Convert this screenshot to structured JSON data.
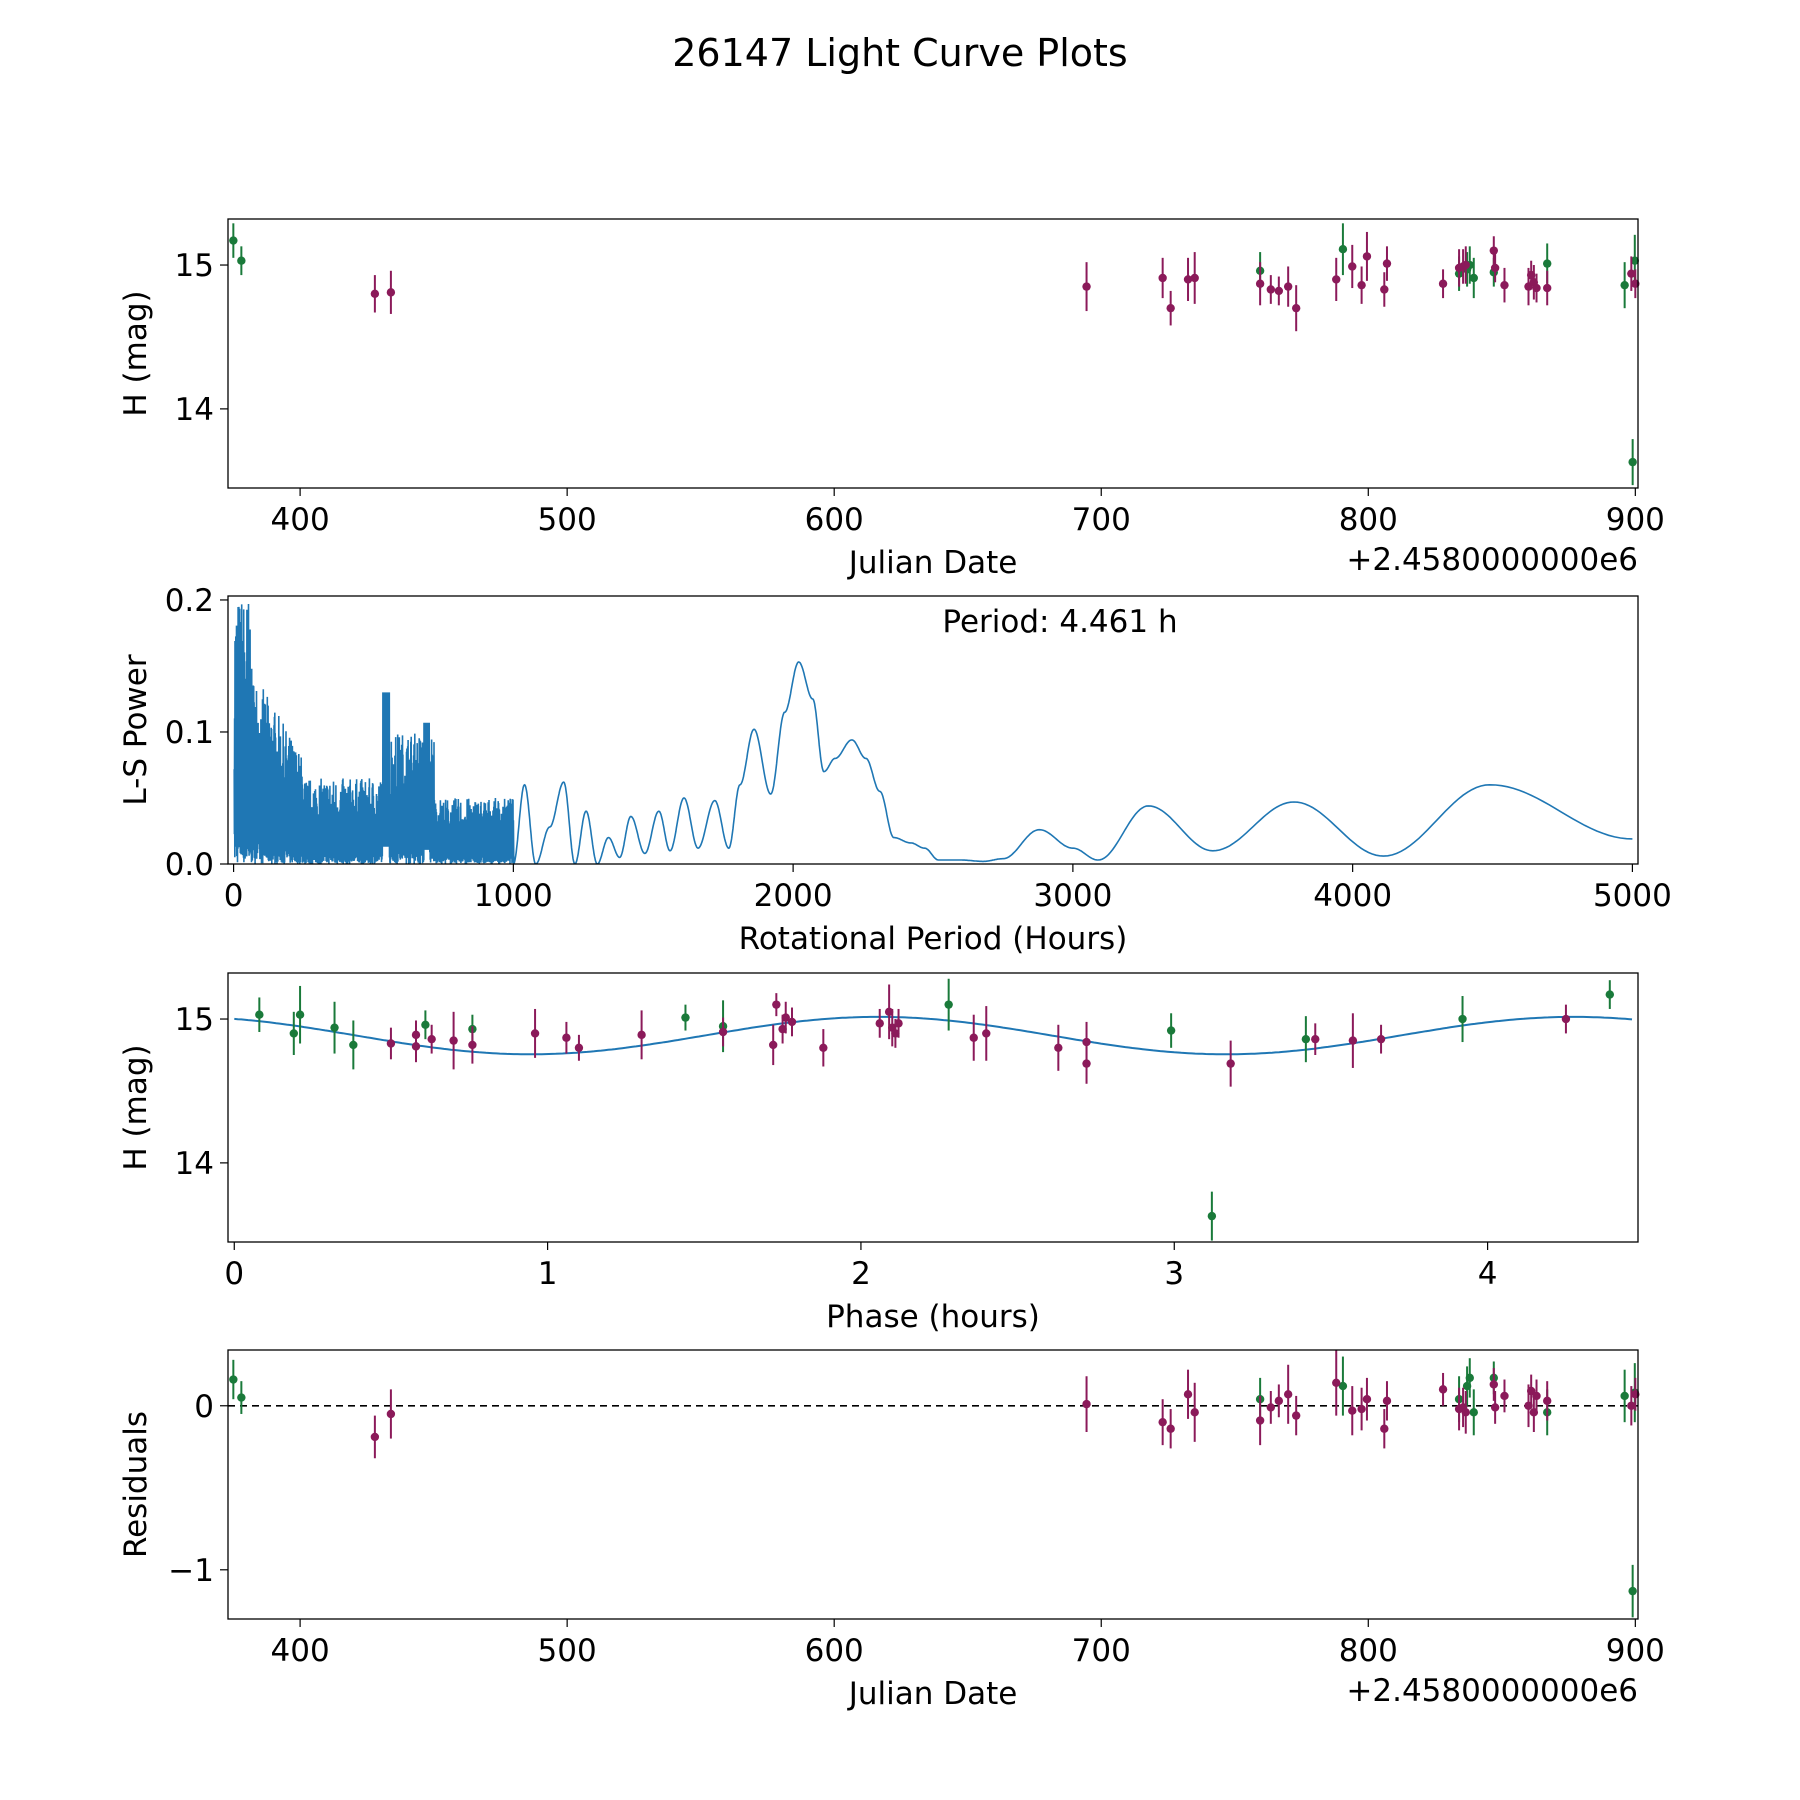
{
  "title": "26147 Light Curve Plots",
  "colors": {
    "green": "#1a7a3a",
    "purple": "#8b1a5a",
    "line": "#1f77b4",
    "axis": "#000000"
  },
  "chart_data": [
    {
      "id": "lightcurve",
      "type": "scatter",
      "xlabel": "Julian Date",
      "ylabel": "H (mag)",
      "offset_label": "+2.4580000000e6",
      "xlim": [
        373,
        901
      ],
      "ylim": [
        13.45,
        15.32
      ],
      "xticks": [
        400,
        500,
        600,
        700,
        800,
        900
      ],
      "yticks": [
        14,
        15
      ],
      "series": [
        {
          "name": "green",
          "color": "green",
          "points": [
            [
              375,
              15.17,
              0.12
            ],
            [
              378,
              15.03,
              0.1
            ],
            [
              759.5,
              14.96,
              0.13
            ],
            [
              790.5,
              15.11,
              0.18
            ],
            [
              834,
              14.94,
              0.12
            ],
            [
              837,
              14.97,
              0.12
            ],
            [
              838,
              15.0,
              0.13
            ],
            [
              839.5,
              14.91,
              0.14
            ],
            [
              847,
              14.95,
              0.1
            ],
            [
              867,
              15.01,
              0.14
            ],
            [
              896,
              14.86,
              0.16
            ],
            [
              899,
              13.63,
              0.16
            ],
            [
              899.8,
              15.03,
              0.18
            ]
          ]
        },
        {
          "name": "purple",
          "color": "purple",
          "points": [
            [
              428,
              14.8,
              0.13
            ],
            [
              434,
              14.81,
              0.15
            ],
            [
              694.5,
              14.85,
              0.17
            ],
            [
              723,
              14.91,
              0.14
            ],
            [
              726,
              14.7,
              0.12
            ],
            [
              732.5,
              14.9,
              0.15
            ],
            [
              735,
              14.91,
              0.18
            ],
            [
              759.5,
              14.87,
              0.15
            ],
            [
              763.5,
              14.83,
              0.1
            ],
            [
              766.5,
              14.82,
              0.1
            ],
            [
              770,
              14.85,
              0.14
            ],
            [
              773,
              14.7,
              0.16
            ],
            [
              788,
              14.9,
              0.15
            ],
            [
              794,
              14.99,
              0.15
            ],
            [
              797.5,
              14.86,
              0.13
            ],
            [
              799.5,
              15.06,
              0.17
            ],
            [
              806,
              14.83,
              0.12
            ],
            [
              807,
              15.01,
              0.12
            ],
            [
              828,
              14.87,
              0.1
            ],
            [
              834,
              14.98,
              0.13
            ],
            [
              835.5,
              14.99,
              0.12
            ],
            [
              836.5,
              15.0,
              0.13
            ],
            [
              847,
              15.1,
              0.1
            ],
            [
              847.5,
              14.98,
              0.1
            ],
            [
              851,
              14.86,
              0.12
            ],
            [
              860,
              14.85,
              0.13
            ],
            [
              861,
              14.93,
              0.1
            ],
            [
              862,
              14.88,
              0.12
            ],
            [
              863,
              14.84,
              0.1
            ],
            [
              867,
              14.84,
              0.12
            ],
            [
              898.5,
              14.94,
              0.12
            ],
            [
              900,
              14.87,
              0.1
            ]
          ]
        }
      ]
    },
    {
      "id": "periodogram",
      "type": "line",
      "xlabel": "Rotational Period (Hours)",
      "ylabel": "L-S Power",
      "annotation": "Period: 4.461 h",
      "xlim": [
        -20,
        5020
      ],
      "ylim": [
        0,
        0.203
      ],
      "xticks": [
        0,
        1000,
        2000,
        3000,
        4000,
        5000
      ],
      "yticks": [
        0.0,
        0.1,
        0.2
      ],
      "ytick_labels": [
        "0.0",
        "0.1",
        "0.2"
      ],
      "peaks": [
        [
          1000,
          0.0
        ],
        [
          1040,
          0.06
        ],
        [
          1080,
          0.0
        ],
        [
          1130,
          0.028
        ],
        [
          1180,
          0.062
        ],
        [
          1220,
          0.0
        ],
        [
          1260,
          0.04
        ],
        [
          1300,
          0.0
        ],
        [
          1340,
          0.02
        ],
        [
          1380,
          0.005
        ],
        [
          1420,
          0.036
        ],
        [
          1470,
          0.008
        ],
        [
          1520,
          0.04
        ],
        [
          1560,
          0.01
        ],
        [
          1610,
          0.05
        ],
        [
          1660,
          0.012
        ],
        [
          1720,
          0.048
        ],
        [
          1770,
          0.012
        ],
        [
          1810,
          0.06
        ],
        [
          1860,
          0.102
        ],
        [
          1920,
          0.053
        ],
        [
          1970,
          0.115
        ],
        [
          2020,
          0.153
        ],
        [
          2070,
          0.125
        ],
        [
          2110,
          0.07
        ],
        [
          2150,
          0.08
        ],
        [
          2210,
          0.094
        ],
        [
          2260,
          0.08
        ],
        [
          2310,
          0.055
        ],
        [
          2360,
          0.02
        ],
        [
          2420,
          0.016
        ],
        [
          2470,
          0.012
        ],
        [
          2520,
          0.003
        ],
        [
          2600,
          0.003
        ],
        [
          2680,
          0.002
        ],
        [
          2750,
          0.004
        ],
        [
          2880,
          0.026
        ],
        [
          3000,
          0.012
        ],
        [
          3090,
          0.003
        ],
        [
          3270,
          0.044
        ],
        [
          3500,
          0.01
        ],
        [
          3790,
          0.047
        ],
        [
          4110,
          0.006
        ],
        [
          4490,
          0.06
        ],
        [
          5000,
          0.019
        ]
      ]
    },
    {
      "id": "phase",
      "type": "scatter",
      "xlabel": "Phase (hours)",
      "ylabel": "H (mag)",
      "xlim": [
        -0.02,
        4.48
      ],
      "ylim": [
        13.45,
        15.32
      ],
      "xticks": [
        0,
        1,
        2,
        3,
        4
      ],
      "yticks": [
        14,
        15
      ],
      "model": {
        "mean": 14.885,
        "amplitude": 0.13,
        "period": 2.22,
        "phase0": 1.5
      },
      "series": [
        {
          "name": "green",
          "color": "green",
          "points": [
            [
              0.08,
              15.03,
              0.12
            ],
            [
              0.19,
              14.9,
              0.15
            ],
            [
              0.21,
              15.03,
              0.2
            ],
            [
              0.32,
              14.94,
              0.18
            ],
            [
              0.38,
              14.82,
              0.17
            ],
            [
              0.61,
              14.96,
              0.1
            ],
            [
              0.76,
              14.93,
              0.1
            ],
            [
              1.44,
              15.01,
              0.09
            ],
            [
              1.56,
              14.95,
              0.18
            ],
            [
              2.28,
              15.1,
              0.18
            ],
            [
              2.99,
              14.92,
              0.12
            ],
            [
              3.12,
              13.63,
              0.17
            ],
            [
              3.42,
              14.86,
              0.16
            ],
            [
              3.92,
              15.0,
              0.16
            ],
            [
              4.39,
              15.17,
              0.1
            ]
          ]
        },
        {
          "name": "purple",
          "color": "purple",
          "points": [
            [
              0.5,
              14.83,
              0.11
            ],
            [
              0.58,
              14.89,
              0.1
            ],
            [
              0.58,
              14.81,
              0.11
            ],
            [
              0.63,
              14.86,
              0.1
            ],
            [
              0.7,
              14.85,
              0.2
            ],
            [
              0.76,
              14.82,
              0.13
            ],
            [
              0.96,
              14.9,
              0.17
            ],
            [
              1.06,
              14.87,
              0.11
            ],
            [
              1.1,
              14.8,
              0.09
            ],
            [
              1.3,
              14.89,
              0.17
            ],
            [
              1.56,
              14.91,
              0.1
            ],
            [
              1.72,
              14.82,
              0.14
            ],
            [
              1.73,
              15.1,
              0.08
            ],
            [
              1.75,
              14.93,
              0.1
            ],
            [
              1.76,
              15.01,
              0.11
            ],
            [
              1.78,
              14.98,
              0.1
            ],
            [
              1.88,
              14.8,
              0.13
            ],
            [
              2.06,
              14.97,
              0.1
            ],
            [
              2.09,
              15.05,
              0.19
            ],
            [
              2.1,
              14.94,
              0.13
            ],
            [
              2.11,
              14.9,
              0.1
            ],
            [
              2.12,
              14.97,
              0.1
            ],
            [
              2.36,
              14.87,
              0.16
            ],
            [
              2.4,
              14.9,
              0.19
            ],
            [
              2.63,
              14.8,
              0.16
            ],
            [
              2.72,
              14.84,
              0.14
            ],
            [
              2.72,
              14.69,
              0.14
            ],
            [
              3.18,
              14.69,
              0.16
            ],
            [
              3.45,
              14.86,
              0.11
            ],
            [
              3.57,
              14.85,
              0.19
            ],
            [
              3.66,
              14.86,
              0.1
            ],
            [
              4.25,
              15.0,
              0.1
            ]
          ]
        }
      ]
    },
    {
      "id": "residuals",
      "type": "scatter",
      "xlabel": "Julian Date",
      "ylabel": "Residuals",
      "offset_label": "+2.4580000000e6",
      "xlim": [
        373,
        901
      ],
      "ylim": [
        -1.3,
        0.34
      ],
      "xticks": [
        400,
        500,
        600,
        700,
        800,
        900
      ],
      "yticks": [
        -1,
        0
      ],
      "ytick_labels": [
        "−1",
        "0"
      ],
      "zero_line": true,
      "series": [
        {
          "name": "green",
          "color": "green",
          "points": [
            [
              375,
              0.16,
              0.12
            ],
            [
              378,
              0.05,
              0.1
            ],
            [
              759.5,
              0.04,
              0.13
            ],
            [
              790.5,
              0.12,
              0.18
            ],
            [
              834,
              0.04,
              0.14
            ],
            [
              837,
              0.12,
              0.12
            ],
            [
              838,
              0.17,
              0.12
            ],
            [
              839.5,
              -0.04,
              0.14
            ],
            [
              847,
              0.17,
              0.1
            ],
            [
              867,
              -0.04,
              0.14
            ],
            [
              896,
              0.06,
              0.16
            ],
            [
              899,
              -1.13,
              0.16
            ],
            [
              899.8,
              0.08,
              0.18
            ]
          ]
        },
        {
          "name": "purple",
          "color": "purple",
          "points": [
            [
              428,
              -0.19,
              0.13
            ],
            [
              434,
              -0.05,
              0.15
            ],
            [
              694.5,
              0.01,
              0.17
            ],
            [
              723,
              -0.1,
              0.14
            ],
            [
              726,
              -0.14,
              0.12
            ],
            [
              732.5,
              0.07,
              0.15
            ],
            [
              735,
              -0.04,
              0.18
            ],
            [
              759.5,
              -0.09,
              0.15
            ],
            [
              763.5,
              -0.01,
              0.1
            ],
            [
              766.5,
              0.03,
              0.1
            ],
            [
              770,
              0.07,
              0.18
            ],
            [
              773,
              -0.06,
              0.12
            ],
            [
              788,
              0.14,
              0.2
            ],
            [
              794,
              -0.03,
              0.15
            ],
            [
              797.5,
              -0.02,
              0.13
            ],
            [
              799.5,
              0.04,
              0.13
            ],
            [
              806,
              -0.14,
              0.12
            ],
            [
              807,
              0.03,
              0.12
            ],
            [
              828,
              0.1,
              0.1
            ],
            [
              834,
              -0.02,
              0.13
            ],
            [
              835.5,
              -0.01,
              0.12
            ],
            [
              836.5,
              -0.04,
              0.13
            ],
            [
              847,
              0.13,
              0.1
            ],
            [
              847.5,
              -0.01,
              0.1
            ],
            [
              851,
              0.06,
              0.1
            ],
            [
              860,
              0.0,
              0.13
            ],
            [
              861,
              0.09,
              0.1
            ],
            [
              862,
              -0.04,
              0.12
            ],
            [
              863,
              0.06,
              0.1
            ],
            [
              867,
              0.03,
              0.12
            ],
            [
              898.5,
              0.0,
              0.12
            ],
            [
              900,
              0.07,
              0.1
            ]
          ]
        }
      ]
    }
  ]
}
